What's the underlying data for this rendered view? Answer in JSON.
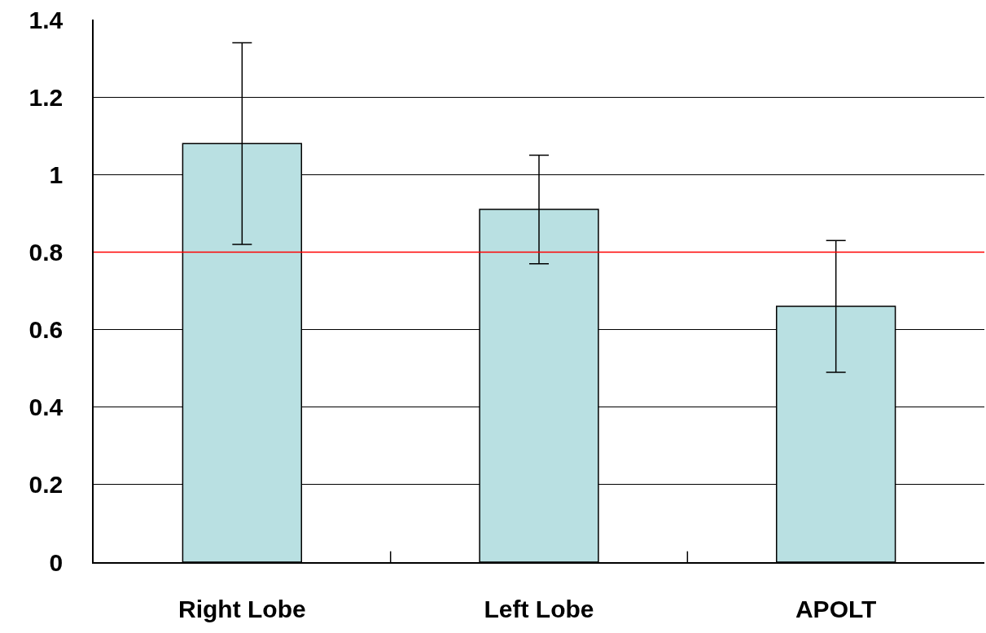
{
  "chart_data": {
    "type": "bar",
    "categories": [
      "Right Lobe",
      "Left Lobe",
      "APOLT"
    ],
    "values": [
      1.08,
      0.91,
      0.66
    ],
    "errors": [
      0.26,
      0.14,
      0.17
    ],
    "color": "#b9e0e2",
    "ylim": [
      0,
      1.4
    ],
    "yticks": [
      0,
      0.2,
      0.4,
      0.6,
      0.8,
      1,
      1.2,
      1.4
    ],
    "grid": "y",
    "ref_lines": [
      {
        "axis": "y",
        "value": 0.8,
        "color": "#ff0000"
      }
    ]
  }
}
